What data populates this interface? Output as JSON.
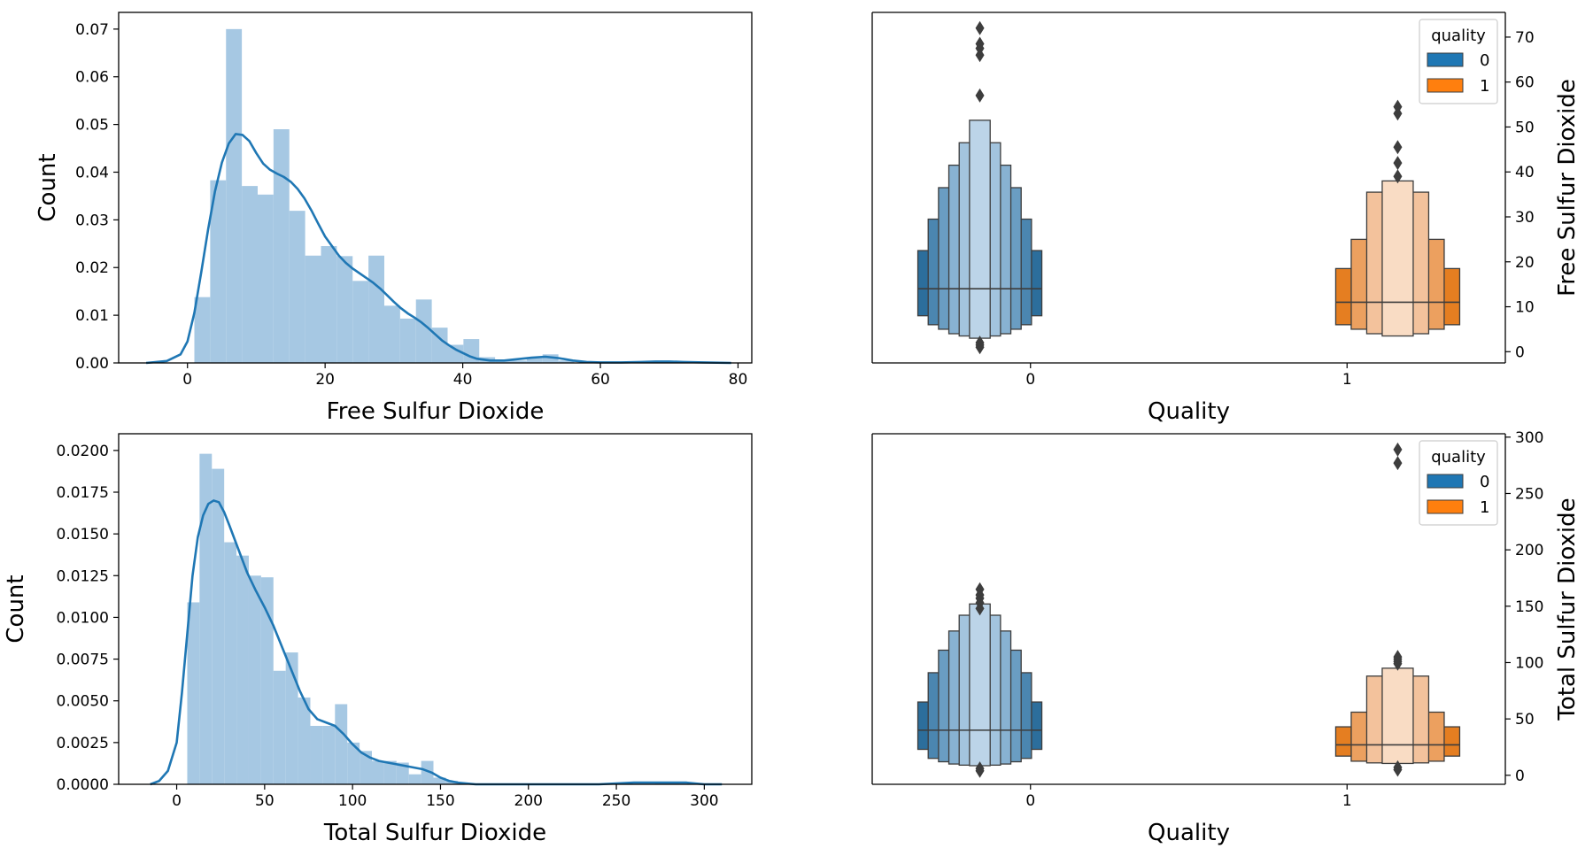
{
  "chart_data": [
    {
      "type": "bar",
      "panel": "top-left",
      "title": "",
      "xlabel": "Free Sulfur Dioxide",
      "ylabel": "Count",
      "xlim": [
        -10,
        82
      ],
      "ylim": [
        0,
        0.0735
      ],
      "xticks": [
        0,
        20,
        40,
        60,
        80
      ],
      "xtick_labels": [
        "0",
        "20",
        "40",
        "60",
        "80"
      ],
      "yticks": [
        0,
        0.01,
        0.02,
        0.03,
        0.04,
        0.05,
        0.06,
        0.07
      ],
      "ytick_labels": [
        "0.00",
        "0.01",
        "0.02",
        "0.03",
        "0.04",
        "0.05",
        "0.06",
        "0.07"
      ],
      "bar_color": "#a6c8e3",
      "kde_color": "#1f77b4",
      "hist": [
        {
          "x0": 1,
          "x1": 3.3,
          "value": 0.0138
        },
        {
          "x0": 3.3,
          "x1": 5.6,
          "value": 0.0383
        },
        {
          "x0": 5.6,
          "x1": 7.9,
          "value": 0.07
        },
        {
          "x0": 7.9,
          "x1": 10.2,
          "value": 0.0371
        },
        {
          "x0": 10.2,
          "x1": 12.5,
          "value": 0.0353
        },
        {
          "x0": 12.5,
          "x1": 14.8,
          "value": 0.049
        },
        {
          "x0": 14.8,
          "x1": 17.1,
          "value": 0.0319
        },
        {
          "x0": 17.1,
          "x1": 19.4,
          "value": 0.0225
        },
        {
          "x0": 19.4,
          "x1": 21.7,
          "value": 0.0245
        },
        {
          "x0": 21.7,
          "x1": 24.0,
          "value": 0.0224
        },
        {
          "x0": 24.0,
          "x1": 26.3,
          "value": 0.0172
        },
        {
          "x0": 26.3,
          "x1": 28.6,
          "value": 0.0225
        },
        {
          "x0": 28.6,
          "x1": 30.9,
          "value": 0.012
        },
        {
          "x0": 30.9,
          "x1": 33.2,
          "value": 0.0093
        },
        {
          "x0": 33.2,
          "x1": 35.5,
          "value": 0.0133
        },
        {
          "x0": 35.5,
          "x1": 37.8,
          "value": 0.0074
        },
        {
          "x0": 37.8,
          "x1": 40.1,
          "value": 0.0038
        },
        {
          "x0": 40.1,
          "x1": 42.4,
          "value": 0.005
        },
        {
          "x0": 42.4,
          "x1": 44.7,
          "value": 0.0012
        },
        {
          "x0": 44.7,
          "x1": 47.0,
          "value": 0.0005
        },
        {
          "x0": 47.0,
          "x1": 49.3,
          "value": 0.0005
        },
        {
          "x0": 49.3,
          "x1": 51.6,
          "value": 0.001
        },
        {
          "x0": 51.6,
          "x1": 53.9,
          "value": 0.0018
        },
        {
          "x0": 53.9,
          "x1": 56.2,
          "value": 0.0005
        },
        {
          "x0": 65.0,
          "x1": 67.3,
          "value": 0.0003
        },
        {
          "x0": 67.3,
          "x1": 69.6,
          "value": 0.0003
        },
        {
          "x0": 69.6,
          "x1": 71.9,
          "value": 0.0003
        }
      ],
      "kde": [
        [
          -6,
          0.0
        ],
        [
          -3,
          0.0004
        ],
        [
          -1,
          0.0018
        ],
        [
          0,
          0.0045
        ],
        [
          1,
          0.0105
        ],
        [
          2,
          0.019
        ],
        [
          3,
          0.028
        ],
        [
          4,
          0.036
        ],
        [
          5,
          0.042
        ],
        [
          6,
          0.046
        ],
        [
          7,
          0.048
        ],
        [
          8,
          0.0478
        ],
        [
          9,
          0.0465
        ],
        [
          10,
          0.044
        ],
        [
          11,
          0.0418
        ],
        [
          12,
          0.0405
        ],
        [
          13,
          0.0397
        ],
        [
          14,
          0.039
        ],
        [
          15,
          0.038
        ],
        [
          16,
          0.0365
        ],
        [
          17,
          0.0345
        ],
        [
          18,
          0.032
        ],
        [
          19,
          0.0292
        ],
        [
          20,
          0.0265
        ],
        [
          21,
          0.0245
        ],
        [
          22,
          0.0225
        ],
        [
          23,
          0.021
        ],
        [
          24,
          0.0198
        ],
        [
          25,
          0.0188
        ],
        [
          26,
          0.0178
        ],
        [
          27,
          0.0168
        ],
        [
          28,
          0.0156
        ],
        [
          29,
          0.0142
        ],
        [
          30,
          0.0128
        ],
        [
          31,
          0.0115
        ],
        [
          32,
          0.0104
        ],
        [
          33,
          0.0095
        ],
        [
          34,
          0.0085
        ],
        [
          35,
          0.0073
        ],
        [
          36,
          0.006
        ],
        [
          37,
          0.0047
        ],
        [
          38,
          0.0037
        ],
        [
          39,
          0.0028
        ],
        [
          40,
          0.0021
        ],
        [
          41,
          0.0014
        ],
        [
          42,
          0.0009
        ],
        [
          44,
          0.0005
        ],
        [
          46,
          0.0005
        ],
        [
          48,
          0.0008
        ],
        [
          50,
          0.0011
        ],
        [
          52,
          0.0013
        ],
        [
          54,
          0.001
        ],
        [
          56,
          0.0005
        ],
        [
          58,
          0.0002
        ],
        [
          60,
          0.0001
        ],
        [
          63,
          0.0001
        ],
        [
          66,
          0.0002
        ],
        [
          68,
          0.0003
        ],
        [
          70,
          0.0003
        ],
        [
          72,
          0.0002
        ],
        [
          75,
          0.0001
        ],
        [
          79,
          0.0
        ]
      ]
    },
    {
      "type": "boxen",
      "panel": "top-right",
      "title": "",
      "xlabel": "Quality",
      "ylabel": "Free Sulfur Dioxide",
      "ylabel_side": "right",
      "ylim": [
        -2.5,
        75.5
      ],
      "yticks": [
        0,
        10,
        20,
        30,
        40,
        50,
        60,
        70
      ],
      "ytick_labels": [
        "0",
        "10",
        "20",
        "30",
        "40",
        "50",
        "60",
        "70"
      ],
      "xtick_labels": [
        "0",
        "1"
      ],
      "legend": {
        "title": "quality",
        "entries": [
          "0",
          "1"
        ],
        "position": "top-right"
      },
      "series": [
        {
          "name": "0",
          "category": "0",
          "color": "#1f77b4",
          "median": 14,
          "boxes": [
            {
              "low": 8,
              "high": 22.5,
              "color": "#2c6e9c"
            },
            {
              "low": 6,
              "high": 29.5,
              "color": "#4b86b0"
            },
            {
              "low": 5,
              "high": 36.5,
              "color": "#6a9dc2"
            },
            {
              "low": 4,
              "high": 41.5,
              "color": "#88b2d2"
            },
            {
              "low": 3.5,
              "high": 46.5,
              "color": "#a3c4de"
            },
            {
              "low": 3,
              "high": 51.5,
              "color": "#bcd4e8"
            }
          ],
          "outliers": [
            1,
            1.5,
            2,
            57,
            66,
            67.5,
            68.5,
            72
          ]
        },
        {
          "name": "1",
          "category": "1",
          "color": "#ff7f0e",
          "median": 11,
          "boxes": [
            {
              "low": 6,
              "high": 18.5,
              "color": "#e57e21"
            },
            {
              "low": 5,
              "high": 25,
              "color": "#eca05f"
            },
            {
              "low": 4,
              "high": 35.5,
              "color": "#f3c29c"
            },
            {
              "low": 3.5,
              "high": 38,
              "color": "#f9dcc4"
            }
          ],
          "outliers": [
            39,
            42,
            45.5,
            53,
            54.5
          ]
        }
      ]
    },
    {
      "type": "bar",
      "panel": "bottom-left",
      "title": "",
      "xlabel": "Total Sulfur Dioxide",
      "ylabel": "Count",
      "xlim": [
        -33,
        327
      ],
      "ylim": [
        0,
        0.021
      ],
      "xticks": [
        0,
        50,
        100,
        150,
        200,
        250,
        300
      ],
      "xtick_labels": [
        "0",
        "50",
        "100",
        "150",
        "200",
        "250",
        "300"
      ],
      "yticks": [
        0,
        0.0025,
        0.005,
        0.0075,
        0.01,
        0.0125,
        0.015,
        0.0175,
        0.02
      ],
      "ytick_labels": [
        "0.0000",
        "0.0025",
        "0.0050",
        "0.0075",
        "0.0100",
        "0.0125",
        "0.0150",
        "0.0175",
        "0.0200"
      ],
      "bar_color": "#a6c8e3",
      "kde_color": "#1f77b4",
      "hist": [
        {
          "x0": 6,
          "x1": 13,
          "value": 0.0109
        },
        {
          "x0": 13,
          "x1": 20,
          "value": 0.0198
        },
        {
          "x0": 20,
          "x1": 27,
          "value": 0.0189
        },
        {
          "x0": 27,
          "x1": 34,
          "value": 0.0145
        },
        {
          "x0": 34,
          "x1": 41,
          "value": 0.0137
        },
        {
          "x0": 41,
          "x1": 48,
          "value": 0.0125
        },
        {
          "x0": 48,
          "x1": 55,
          "value": 0.0124
        },
        {
          "x0": 55,
          "x1": 62,
          "value": 0.0068
        },
        {
          "x0": 62,
          "x1": 69,
          "value": 0.0079
        },
        {
          "x0": 69,
          "x1": 76,
          "value": 0.0052
        },
        {
          "x0": 76,
          "x1": 83,
          "value": 0.0035
        },
        {
          "x0": 83,
          "x1": 90,
          "value": 0.0035
        },
        {
          "x0": 90,
          "x1": 97,
          "value": 0.0048
        },
        {
          "x0": 97,
          "x1": 104,
          "value": 0.0025
        },
        {
          "x0": 104,
          "x1": 111,
          "value": 0.002
        },
        {
          "x0": 111,
          "x1": 118,
          "value": 0.0014
        },
        {
          "x0": 118,
          "x1": 125,
          "value": 0.0014
        },
        {
          "x0": 125,
          "x1": 132,
          "value": 0.0013
        },
        {
          "x0": 132,
          "x1": 139,
          "value": 0.0006
        },
        {
          "x0": 139,
          "x1": 146,
          "value": 0.0014
        },
        {
          "x0": 146,
          "x1": 153,
          "value": 0.0004
        },
        {
          "x0": 153,
          "x1": 160,
          "value": 0.0002
        },
        {
          "x0": 272,
          "x1": 279,
          "value": 0.0001
        },
        {
          "x0": 279,
          "x1": 286,
          "value": 0.0001
        }
      ],
      "kde": [
        [
          -15,
          0.0
        ],
        [
          -10,
          0.0002
        ],
        [
          -5,
          0.0008
        ],
        [
          0,
          0.0025
        ],
        [
          3,
          0.0055
        ],
        [
          6,
          0.009
        ],
        [
          9,
          0.0125
        ],
        [
          12,
          0.0148
        ],
        [
          15,
          0.0161
        ],
        [
          18,
          0.0168
        ],
        [
          21,
          0.017
        ],
        [
          24,
          0.0169
        ],
        [
          27,
          0.0163
        ],
        [
          30,
          0.0155
        ],
        [
          35,
          0.0141
        ],
        [
          40,
          0.0127
        ],
        [
          45,
          0.0116
        ],
        [
          50,
          0.0106
        ],
        [
          55,
          0.0095
        ],
        [
          60,
          0.0082
        ],
        [
          65,
          0.0069
        ],
        [
          70,
          0.0056
        ],
        [
          75,
          0.0045
        ],
        [
          80,
          0.0039
        ],
        [
          85,
          0.0037
        ],
        [
          90,
          0.0035
        ],
        [
          95,
          0.003
        ],
        [
          100,
          0.0024
        ],
        [
          105,
          0.0019
        ],
        [
          110,
          0.0016
        ],
        [
          115,
          0.0014
        ],
        [
          120,
          0.0013
        ],
        [
          125,
          0.0012
        ],
        [
          130,
          0.0011
        ],
        [
          135,
          0.001
        ],
        [
          140,
          0.0009
        ],
        [
          145,
          0.0007
        ],
        [
          150,
          0.0004
        ],
        [
          155,
          0.0002
        ],
        [
          160,
          0.0001
        ],
        [
          170,
          0.0
        ],
        [
          200,
          0.0
        ],
        [
          240,
          0.0
        ],
        [
          260,
          0.0001
        ],
        [
          270,
          0.0001
        ],
        [
          280,
          0.0001
        ],
        [
          290,
          0.0001
        ],
        [
          300,
          0.0
        ],
        [
          310,
          0.0
        ]
      ]
    },
    {
      "type": "boxen",
      "panel": "bottom-right",
      "title": "",
      "xlabel": "Quality",
      "ylabel": "Total Sulfur Dioxide",
      "ylabel_side": "right",
      "ylim": [
        -8,
        303
      ],
      "yticks": [
        0,
        50,
        100,
        150,
        200,
        250,
        300
      ],
      "ytick_labels": [
        "0",
        "50",
        "100",
        "150",
        "200",
        "250",
        "300"
      ],
      "xtick_labels": [
        "0",
        "1"
      ],
      "legend": {
        "title": "quality",
        "entries": [
          "0",
          "1"
        ],
        "position": "top-right"
      },
      "series": [
        {
          "name": "0",
          "category": "0",
          "color": "#1f77b4",
          "median": 40,
          "boxes": [
            {
              "low": 23,
              "high": 65,
              "color": "#2c6e9c"
            },
            {
              "low": 15,
              "high": 91,
              "color": "#4b86b0"
            },
            {
              "low": 12,
              "high": 111,
              "color": "#6a9dc2"
            },
            {
              "low": 10,
              "high": 128,
              "color": "#88b2d2"
            },
            {
              "low": 9,
              "high": 142,
              "color": "#a3c4de"
            },
            {
              "low": 8.5,
              "high": 152,
              "color": "#bcd4e8"
            }
          ],
          "outliers": [
            4,
            6,
            148,
            153,
            157,
            160,
            165
          ]
        },
        {
          "name": "1",
          "category": "1",
          "color": "#ff7f0e",
          "median": 27,
          "boxes": [
            {
              "low": 17,
              "high": 43,
              "color": "#e57e21"
            },
            {
              "low": 12.5,
              "high": 56,
              "color": "#eca05f"
            },
            {
              "low": 11,
              "high": 88,
              "color": "#f3c29c"
            },
            {
              "low": 10.5,
              "high": 95,
              "color": "#f9dcc4"
            }
          ],
          "outliers": [
            5,
            7,
            99,
            101,
            103,
            105,
            277,
            289
          ]
        }
      ]
    }
  ]
}
